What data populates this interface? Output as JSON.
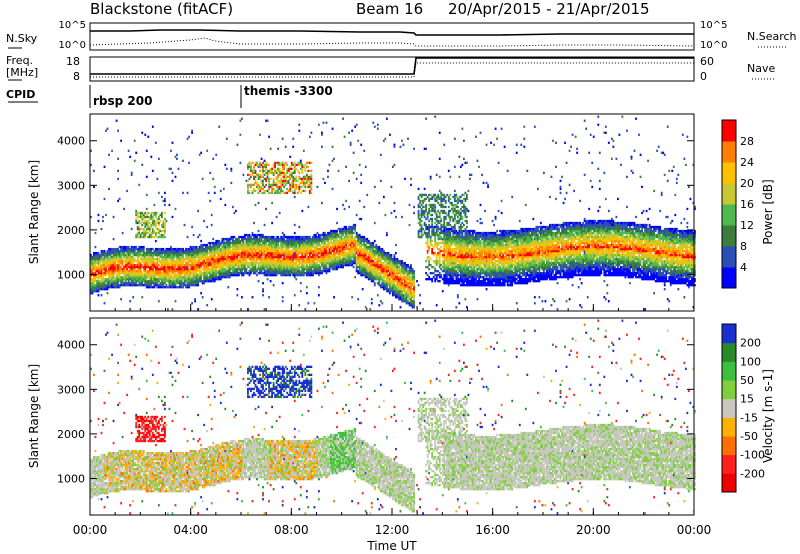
{
  "header": {
    "title": "Blackstone (fitACF)",
    "beam": "Beam 16",
    "date_range": "20/Apr/2015 - 21/Apr/2015"
  },
  "info_panels": {
    "nsky_label": "N.Sky",
    "nsky_ticks": [
      "10^5",
      "10^0"
    ],
    "nsearch_label": "N.Search",
    "nsearch_ticks": [
      "10^5",
      "10^0"
    ],
    "freq_label_1": "Freq.",
    "freq_label_2": "[MHz]",
    "freq_ticks": [
      "18",
      "8"
    ],
    "nave_label": "Nave",
    "nave_ticks": [
      "60",
      "0"
    ],
    "cpid_label": "CPID",
    "cpid_programs": [
      {
        "name": "rbsp 200",
        "start_hour": 0
      },
      {
        "name": "themis -3300",
        "start_hour": 6
      }
    ]
  },
  "chart_data": [
    {
      "type": "heatmap",
      "name": "power",
      "ylabel": "Slant Range [km]",
      "yticks": [
        "1000",
        "2000",
        "3000",
        "4000"
      ],
      "ylim": [
        180,
        4600
      ],
      "xlim": [
        0,
        24
      ],
      "colorbar_label": "Power [dB]",
      "colorbar_ticks": [
        "4",
        "8",
        "12",
        "16",
        "20",
        "24",
        "28"
      ],
      "colorbar_colors": [
        "#0000ff",
        "#2a4fb8",
        "#3c7d3c",
        "#4fb94f",
        "#c8c832",
        "#ffc000",
        "#ff8000",
        "#ff0000"
      ]
    },
    {
      "type": "heatmap",
      "name": "velocity",
      "ylabel": "Slant Range [km]",
      "yticks": [
        "1000",
        "2000",
        "3000",
        "4000"
      ],
      "ylim": [
        180,
        4600
      ],
      "xlim": [
        0,
        24
      ],
      "xlabel": "Time UT",
      "xticks": [
        "00:00",
        "04:00",
        "08:00",
        "12:00",
        "16:00",
        "20:00",
        "00:00"
      ],
      "colorbar_label": "Velocity [m s-1]",
      "colorbar_ticks": [
        "200",
        "100",
        "50",
        "15",
        "-15",
        "-50",
        "-100",
        "-200"
      ],
      "colorbar_colors": [
        "#1a2fd0",
        "#2a8a2a",
        "#3fbf3f",
        "#7fcf3f",
        "#c8c8c0",
        "#ffb000",
        "#ff7000",
        "#ff2020",
        "#ee0000"
      ]
    }
  ]
}
